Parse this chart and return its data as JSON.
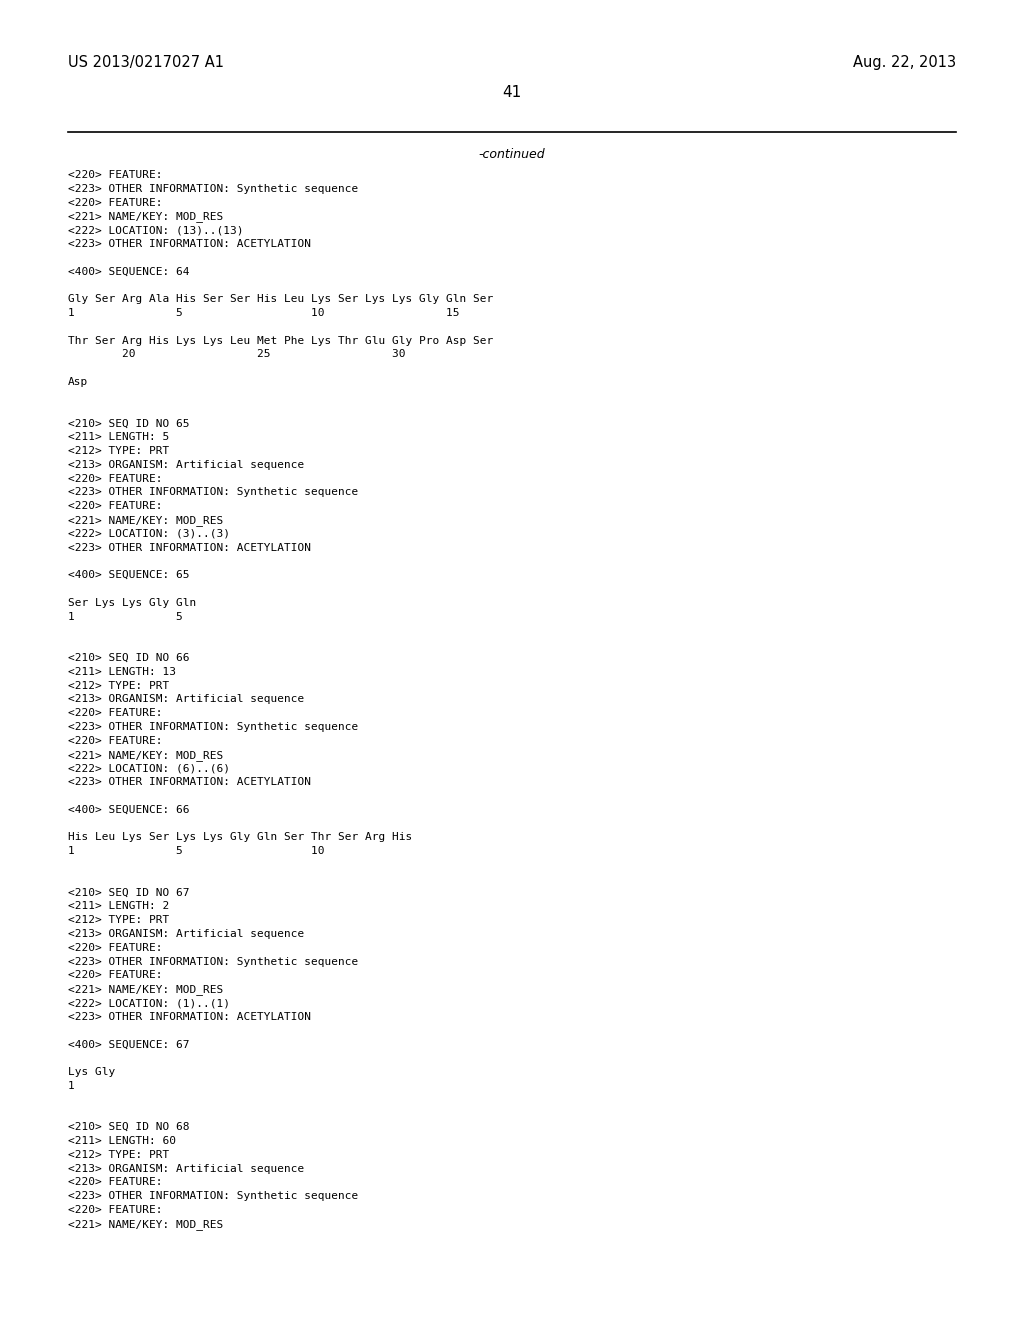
{
  "header_left": "US 2013/0217027 A1",
  "header_right": "Aug. 22, 2013",
  "page_number": "41",
  "continued_text": "-continued",
  "background_color": "#ffffff",
  "text_color": "#000000",
  "lines": [
    "<220> FEATURE:",
    "<223> OTHER INFORMATION: Synthetic sequence",
    "<220> FEATURE:",
    "<221> NAME/KEY: MOD_RES",
    "<222> LOCATION: (13)..(13)",
    "<223> OTHER INFORMATION: ACETYLATION",
    "",
    "<400> SEQUENCE: 64",
    "",
    "Gly Ser Arg Ala His Ser Ser His Leu Lys Ser Lys Lys Gly Gln Ser",
    "1               5                   10                  15",
    "",
    "Thr Ser Arg His Lys Lys Leu Met Phe Lys Thr Glu Gly Pro Asp Ser",
    "        20                  25                  30",
    "",
    "Asp",
    "",
    "",
    "<210> SEQ ID NO 65",
    "<211> LENGTH: 5",
    "<212> TYPE: PRT",
    "<213> ORGANISM: Artificial sequence",
    "<220> FEATURE:",
    "<223> OTHER INFORMATION: Synthetic sequence",
    "<220> FEATURE:",
    "<221> NAME/KEY: MOD_RES",
    "<222> LOCATION: (3)..(3)",
    "<223> OTHER INFORMATION: ACETYLATION",
    "",
    "<400> SEQUENCE: 65",
    "",
    "Ser Lys Lys Gly Gln",
    "1               5",
    "",
    "",
    "<210> SEQ ID NO 66",
    "<211> LENGTH: 13",
    "<212> TYPE: PRT",
    "<213> ORGANISM: Artificial sequence",
    "<220> FEATURE:",
    "<223> OTHER INFORMATION: Synthetic sequence",
    "<220> FEATURE:",
    "<221> NAME/KEY: MOD_RES",
    "<222> LOCATION: (6)..(6)",
    "<223> OTHER INFORMATION: ACETYLATION",
    "",
    "<400> SEQUENCE: 66",
    "",
    "His Leu Lys Ser Lys Lys Gly Gln Ser Thr Ser Arg His",
    "1               5                   10",
    "",
    "",
    "<210> SEQ ID NO 67",
    "<211> LENGTH: 2",
    "<212> TYPE: PRT",
    "<213> ORGANISM: Artificial sequence",
    "<220> FEATURE:",
    "<223> OTHER INFORMATION: Synthetic sequence",
    "<220> FEATURE:",
    "<221> NAME/KEY: MOD_RES",
    "<222> LOCATION: (1)..(1)",
    "<223> OTHER INFORMATION: ACETYLATION",
    "",
    "<400> SEQUENCE: 67",
    "",
    "Lys Gly",
    "1",
    "",
    "",
    "<210> SEQ ID NO 68",
    "<211> LENGTH: 60",
    "<212> TYPE: PRT",
    "<213> ORGANISM: Artificial sequence",
    "<220> FEATURE:",
    "<223> OTHER INFORMATION: Synthetic sequence",
    "<220> FEATURE:",
    "<221> NAME/KEY: MOD_RES"
  ]
}
